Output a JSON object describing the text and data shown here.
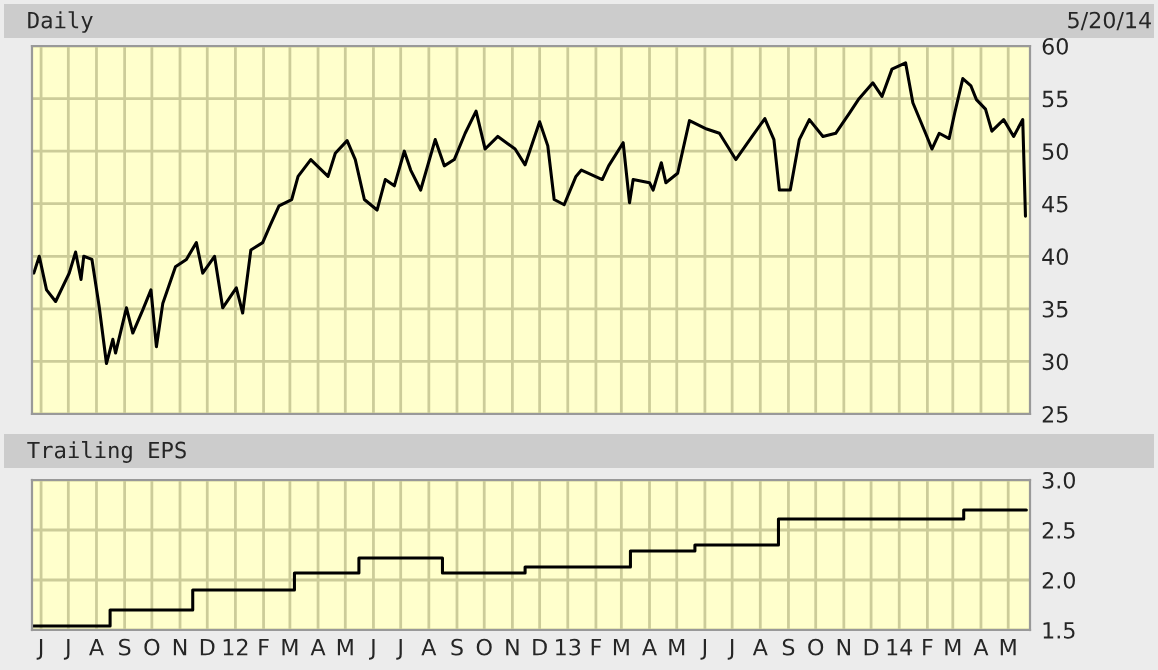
{
  "chart_data": [
    {
      "type": "line",
      "title": "Daily",
      "annotations": [
        "5/20/14"
      ],
      "tick_labels": "y",
      "grid": true,
      "legend": false,
      "xlim": [
        "2011-05-22",
        "2014-05-25"
      ],
      "ylim": [
        25,
        60
      ],
      "yticks": [
        25,
        30,
        35,
        40,
        45,
        50,
        55,
        60
      ],
      "xticks": [
        {
          "value": "2011-06-01",
          "label": null
        },
        {
          "value": "2011-07-01",
          "label": null
        },
        {
          "value": "2011-08-01",
          "label": null
        },
        {
          "value": "2011-09-01",
          "label": null
        },
        {
          "value": "2011-10-01",
          "label": null
        },
        {
          "value": "2011-11-01",
          "label": null
        },
        {
          "value": "2011-12-01",
          "label": null
        },
        {
          "value": "2012-01-01",
          "label": null
        },
        {
          "value": "2012-02-01",
          "label": null
        },
        {
          "value": "2012-03-01",
          "label": null
        },
        {
          "value": "2012-04-01",
          "label": null
        },
        {
          "value": "2012-05-01",
          "label": null
        },
        {
          "value": "2012-06-01",
          "label": null
        },
        {
          "value": "2012-07-01",
          "label": null
        },
        {
          "value": "2012-08-01",
          "label": null
        },
        {
          "value": "2012-09-01",
          "label": null
        },
        {
          "value": "2012-10-01",
          "label": null
        },
        {
          "value": "2012-11-01",
          "label": null
        },
        {
          "value": "2012-12-01",
          "label": null
        },
        {
          "value": "2013-01-01",
          "label": null
        },
        {
          "value": "2013-02-01",
          "label": null
        },
        {
          "value": "2013-03-01",
          "label": null
        },
        {
          "value": "2013-04-01",
          "label": null
        },
        {
          "value": "2013-05-01",
          "label": null
        },
        {
          "value": "2013-06-01",
          "label": null
        },
        {
          "value": "2013-07-01",
          "label": null
        },
        {
          "value": "2013-08-01",
          "label": null
        },
        {
          "value": "2013-09-01",
          "label": null
        },
        {
          "value": "2013-10-01",
          "label": null
        },
        {
          "value": "2013-11-01",
          "label": null
        },
        {
          "value": "2013-12-01",
          "label": null
        },
        {
          "value": "2014-01-01",
          "label": null
        },
        {
          "value": "2014-02-01",
          "label": null
        },
        {
          "value": "2014-03-01",
          "label": null
        },
        {
          "value": "2014-04-01",
          "label": null
        },
        {
          "value": "2014-05-01",
          "label": null
        }
      ],
      "series": [
        {
          "color": "#000000",
          "x": [
            "2011-05-24",
            "2011-05-30",
            "2011-06-07",
            "2011-06-17",
            "2011-07-02",
            "2011-07-09",
            "2011-07-15",
            "2011-07-18",
            "2011-07-27",
            "2011-08-04",
            "2011-08-12",
            "2011-08-19",
            "2011-08-22",
            "2011-09-03",
            "2011-09-10",
            "2011-09-21",
            "2011-09-30",
            "2011-10-06",
            "2011-10-13",
            "2011-10-27",
            "2011-11-08",
            "2011-11-19",
            "2011-11-26",
            "2011-12-09",
            "2011-12-18",
            "2012-01-02",
            "2012-01-09",
            "2012-01-18",
            "2012-01-31",
            "2012-02-08",
            "2012-02-18",
            "2012-03-03",
            "2012-03-10",
            "2012-03-24",
            "2012-04-12",
            "2012-04-20",
            "2012-05-03",
            "2012-05-12",
            "2012-05-22",
            "2012-06-05",
            "2012-06-14",
            "2012-06-24",
            "2012-07-05",
            "2012-07-12",
            "2012-07-23",
            "2012-08-08",
            "2012-08-18",
            "2012-08-29",
            "2012-09-10",
            "2012-09-22",
            "2012-10-02",
            "2012-10-16",
            "2012-11-04",
            "2012-11-15",
            "2012-12-01",
            "2012-12-10",
            "2012-12-17",
            "2012-12-28",
            "2013-01-10",
            "2013-01-16",
            "2013-02-08",
            "2013-02-15",
            "2013-03-03",
            "2013-03-10",
            "2013-03-14",
            "2013-04-01",
            "2013-04-05",
            "2013-04-14",
            "2013-04-19",
            "2013-05-02",
            "2013-05-15",
            "2013-06-03",
            "2013-06-17",
            "2013-07-05",
            "2013-07-23",
            "2013-08-06",
            "2013-08-16",
            "2013-08-22",
            "2013-09-03",
            "2013-09-13",
            "2013-09-24",
            "2013-10-09",
            "2013-10-23",
            "2013-11-07",
            "2013-11-17",
            "2013-12-03",
            "2013-12-13",
            "2013-12-24",
            "2014-01-08",
            "2014-01-16",
            "2014-01-30",
            "2014-02-06",
            "2014-02-14",
            "2014-02-25",
            "2014-03-03",
            "2014-03-12",
            "2014-03-21",
            "2014-03-27",
            "2014-04-06",
            "2014-04-13",
            "2014-04-26",
            "2014-05-07",
            "2014-05-17",
            "2014-05-20"
          ],
          "values": [
            38.4,
            40.0,
            36.8,
            35.7,
            38.4,
            40.4,
            37.8,
            40.0,
            39.7,
            35.2,
            29.8,
            32.1,
            30.8,
            35.1,
            32.7,
            34.9,
            36.8,
            31.4,
            35.5,
            39.0,
            39.7,
            41.3,
            38.4,
            40.0,
            35.1,
            37.0,
            34.6,
            40.6,
            41.3,
            42.9,
            44.8,
            45.4,
            47.6,
            49.2,
            47.6,
            49.8,
            51.0,
            49.2,
            45.4,
            44.4,
            47.3,
            46.7,
            50.0,
            48.2,
            46.3,
            51.1,
            48.6,
            49.2,
            51.7,
            53.8,
            50.2,
            51.4,
            50.2,
            48.7,
            52.8,
            50.5,
            45.4,
            44.9,
            47.6,
            48.2,
            47.3,
            48.6,
            50.8,
            45.1,
            47.3,
            47.0,
            46.3,
            48.9,
            47.0,
            47.9,
            52.9,
            52.1,
            51.7,
            49.2,
            51.4,
            53.1,
            51.1,
            46.3,
            46.3,
            51.1,
            53.0,
            51.4,
            51.7,
            53.6,
            54.9,
            56.5,
            55.2,
            57.8,
            58.4,
            54.6,
            51.7,
            50.2,
            51.7,
            51.2,
            53.6,
            56.9,
            56.2,
            54.9,
            54.0,
            51.9,
            53.0,
            51.4,
            53.0,
            43.8
          ]
        }
      ]
    },
    {
      "type": "step",
      "title": "Trailing EPS",
      "grid": true,
      "legend": false,
      "xlim": [
        "2011-05-22",
        "2014-05-25"
      ],
      "ylim": [
        1.5,
        3.0
      ],
      "yticks": [
        1.5,
        {
          "value": 2.0,
          "label": "2.0"
        },
        2.5,
        {
          "value": 3.0,
          "label": "3.0"
        }
      ],
      "xticks": [
        {
          "value": "2011-06-01",
          "label": "J"
        },
        {
          "value": "2011-07-01",
          "label": "J"
        },
        {
          "value": "2011-08-01",
          "label": "A"
        },
        {
          "value": "2011-09-01",
          "label": "S"
        },
        {
          "value": "2011-10-01",
          "label": "O"
        },
        {
          "value": "2011-11-01",
          "label": "N"
        },
        {
          "value": "2011-12-01",
          "label": "D"
        },
        {
          "value": "2012-01-01",
          "label": "12"
        },
        {
          "value": "2012-02-01",
          "label": "F"
        },
        {
          "value": "2012-03-01",
          "label": "M"
        },
        {
          "value": "2012-04-01",
          "label": "A"
        },
        {
          "value": "2012-05-01",
          "label": "M"
        },
        {
          "value": "2012-06-01",
          "label": "J"
        },
        {
          "value": "2012-07-01",
          "label": "J"
        },
        {
          "value": "2012-08-01",
          "label": "A"
        },
        {
          "value": "2012-09-01",
          "label": "S"
        },
        {
          "value": "2012-10-01",
          "label": "O"
        },
        {
          "value": "2012-11-01",
          "label": "N"
        },
        {
          "value": "2012-12-01",
          "label": "D"
        },
        {
          "value": "2013-01-01",
          "label": "13"
        },
        {
          "value": "2013-02-01",
          "label": "F"
        },
        {
          "value": "2013-03-01",
          "label": "M"
        },
        {
          "value": "2013-04-01",
          "label": "A"
        },
        {
          "value": "2013-05-01",
          "label": "M"
        },
        {
          "value": "2013-06-01",
          "label": "J"
        },
        {
          "value": "2013-07-01",
          "label": "J"
        },
        {
          "value": "2013-08-01",
          "label": "A"
        },
        {
          "value": "2013-09-01",
          "label": "S"
        },
        {
          "value": "2013-10-01",
          "label": "O"
        },
        {
          "value": "2013-11-01",
          "label": "N"
        },
        {
          "value": "2013-12-01",
          "label": "D"
        },
        {
          "value": "2014-01-01",
          "label": "14"
        },
        {
          "value": "2014-02-01",
          "label": "F"
        },
        {
          "value": "2014-03-01",
          "label": "M"
        },
        {
          "value": "2014-04-01",
          "label": "A"
        },
        {
          "value": "2014-05-01",
          "label": "M"
        }
      ],
      "series": [
        {
          "color": "#000000",
          "x": [
            "2011-05-22",
            "2011-08-16",
            "2011-11-15",
            "2012-03-06",
            "2012-05-16",
            "2012-08-16",
            "2012-11-15",
            "2013-03-11",
            "2013-05-21",
            "2013-08-21",
            "2014-03-13",
            "2014-05-21"
          ],
          "values": [
            1.54,
            1.7,
            1.9,
            2.07,
            2.22,
            2.07,
            2.13,
            2.29,
            2.35,
            2.61,
            2.7,
            2.7
          ]
        }
      ]
    }
  ]
}
